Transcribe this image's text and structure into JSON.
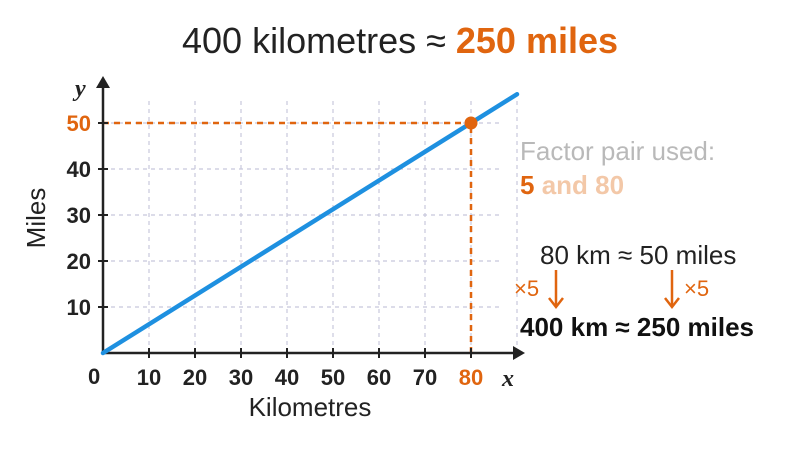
{
  "title": {
    "part1": "400 kilometres ≈ ",
    "part2": "250 miles"
  },
  "colors": {
    "accent": "#e0650f",
    "line": "#1e90e0",
    "grid": "#c8c8dc",
    "axis": "#222222"
  },
  "chart_data": {
    "type": "line",
    "xlabel": "Kilometres",
    "ylabel": "Miles",
    "x_axis_letter": "x",
    "y_axis_letter": "y",
    "origin_label": "0",
    "xlim": [
      0,
      90
    ],
    "ylim": [
      0,
      55
    ],
    "x_ticks": [
      10,
      20,
      30,
      40,
      50,
      60,
      70,
      80
    ],
    "y_ticks": [
      10,
      20,
      30,
      40,
      50
    ],
    "highlight_x_tick": 80,
    "highlight_y_tick": 50,
    "grid": true,
    "series": [
      {
        "x": [
          0,
          90
        ],
        "y": [
          0,
          56.25
        ]
      }
    ],
    "highlight_point": {
      "x": 80,
      "y": 50
    }
  },
  "factor": {
    "label": "Factor pair used:",
    "a": "5",
    "and": " and ",
    "b": "80"
  },
  "conversion": {
    "line1": "80 km ≈ 50 miles",
    "multiplier_left": "×5",
    "multiplier_right": "×5",
    "line2": "400 km ≈ 250 miles"
  }
}
